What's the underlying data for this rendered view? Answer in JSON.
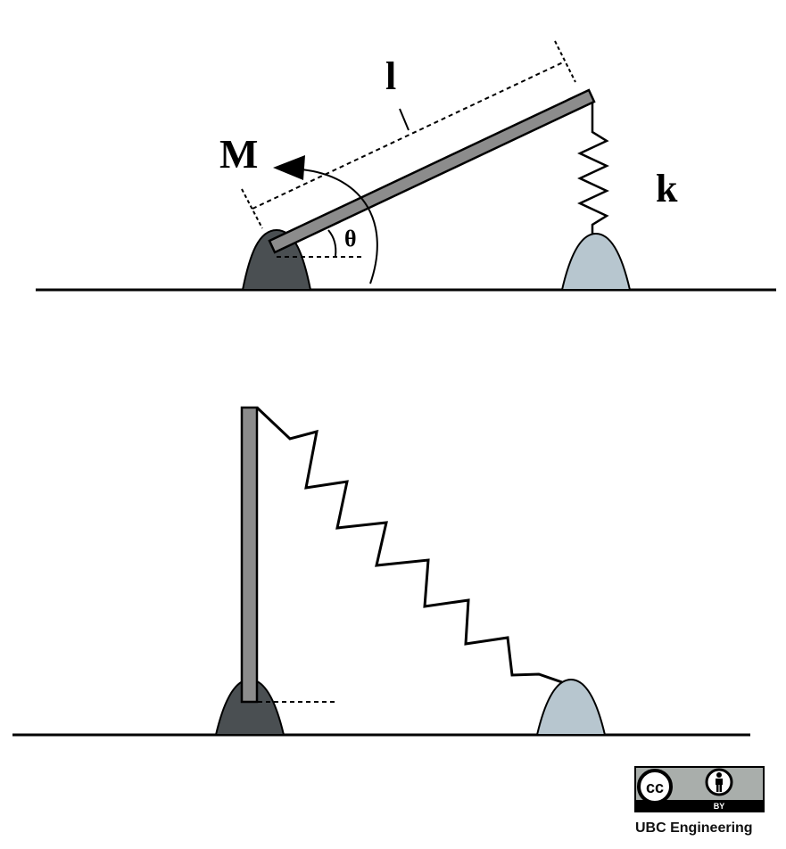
{
  "labels": {
    "length": "l",
    "moment": "M",
    "angle": "θ",
    "spring_constant": "k"
  },
  "license": {
    "cc_symbol": "cc",
    "by_text": "BY",
    "credit": "UBC Engineering"
  },
  "colors": {
    "pin_support": "#4a4f52",
    "spring_support": "#b7c6cf",
    "bar": "#8c8c8c",
    "line": "#000000"
  }
}
